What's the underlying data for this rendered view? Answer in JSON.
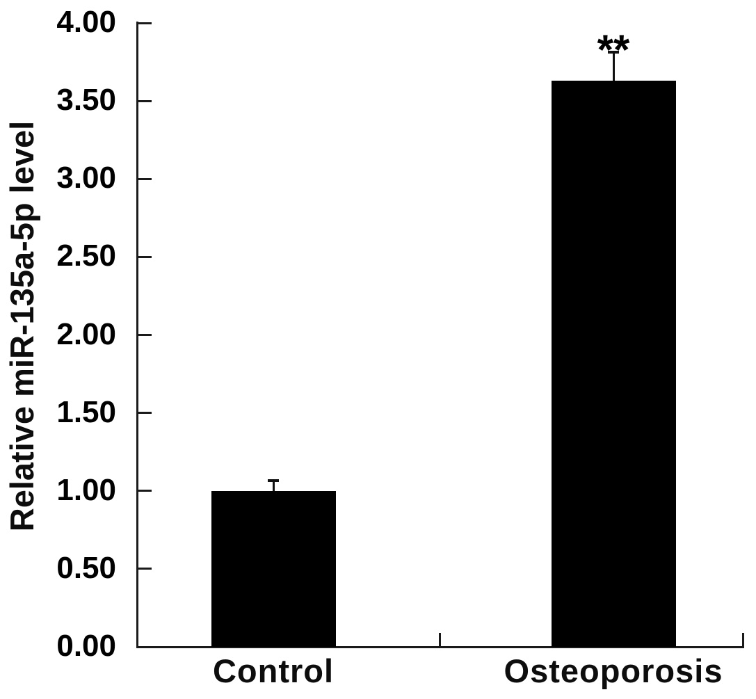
{
  "chart_data": {
    "type": "bar",
    "title": "",
    "ylabel": "Relative miR-135a-5p level",
    "xlabel": "",
    "categories": [
      "Control",
      "Osteoporosis"
    ],
    "values": [
      1.0,
      3.63
    ],
    "errors": [
      0.06,
      0.18
    ],
    "annotations": [
      {
        "category_index": 1,
        "text": "**"
      }
    ],
    "ylim": [
      0,
      4
    ],
    "ytick_values": [
      0,
      0.5,
      1,
      1.5,
      2,
      2.5,
      3,
      3.5,
      4
    ],
    "ytick_labels": [
      "0.00",
      "0.50",
      "1.00",
      "1.50",
      "2.00",
      "2.50",
      "3.00",
      "3.50",
      "4.00"
    ],
    "grid": false,
    "legend": "none",
    "bar_color": "#000000",
    "axis_color": "#1a1a1a",
    "text_color": "#000000",
    "background_color": "#ffffff"
  }
}
